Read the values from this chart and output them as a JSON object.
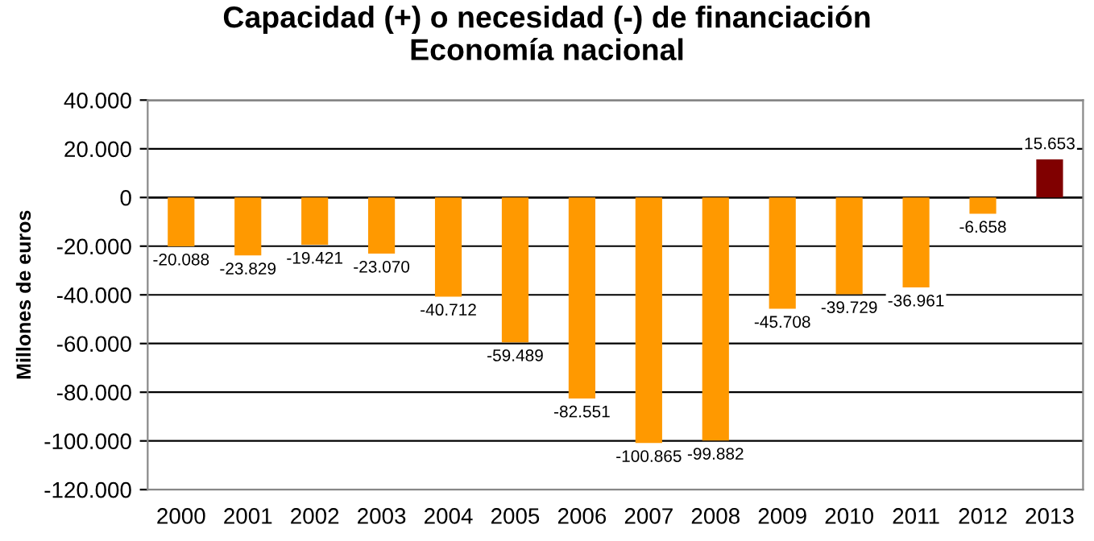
{
  "chart_data": {
    "type": "bar",
    "title": "Capacidad (+) o necesidad (-) de financiación\nEconomía nacional",
    "ylabel": "Millones de euros",
    "categories": [
      "2000",
      "2001",
      "2002",
      "2003",
      "2004",
      "2005",
      "2006",
      "2007",
      "2008",
      "2009",
      "2010",
      "2011",
      "2012",
      "2013"
    ],
    "values": [
      -20088,
      -23829,
      -19421,
      -23070,
      -40712,
      -59489,
      -82551,
      -100865,
      -99882,
      -45708,
      -39729,
      -36961,
      -6658,
      15653
    ],
    "colors": [
      "#ff9900",
      "#ff9900",
      "#ff9900",
      "#ff9900",
      "#ff9900",
      "#ff9900",
      "#ff9900",
      "#ff9900",
      "#ff9900",
      "#ff9900",
      "#ff9900",
      "#ff9900",
      "#ff9900",
      "#800000"
    ],
    "value_labels": [
      "-20.088",
      "-23.829",
      "-19.421",
      "-23.070",
      "-40.712",
      "-59.489",
      "-82.551",
      "-100.865",
      "-99.882",
      "-45.708",
      "-39.729",
      "-36.961",
      "-6.658",
      "15.653"
    ],
    "ylim": [
      -120000,
      40000
    ],
    "yticks": [
      {
        "value": -120000,
        "label": "-120.000"
      },
      {
        "value": -100000,
        "label": "-100.000"
      },
      {
        "value": -80000,
        "label": "-80.000"
      },
      {
        "value": -60000,
        "label": "-60.000"
      },
      {
        "value": -40000,
        "label": "-40.000"
      },
      {
        "value": -20000,
        "label": "-20.000"
      },
      0,
      {
        "value": 20000,
        "label": "20.000"
      },
      {
        "value": 40000,
        "label": "40.000"
      }
    ],
    "grid": "y",
    "legend": false
  }
}
